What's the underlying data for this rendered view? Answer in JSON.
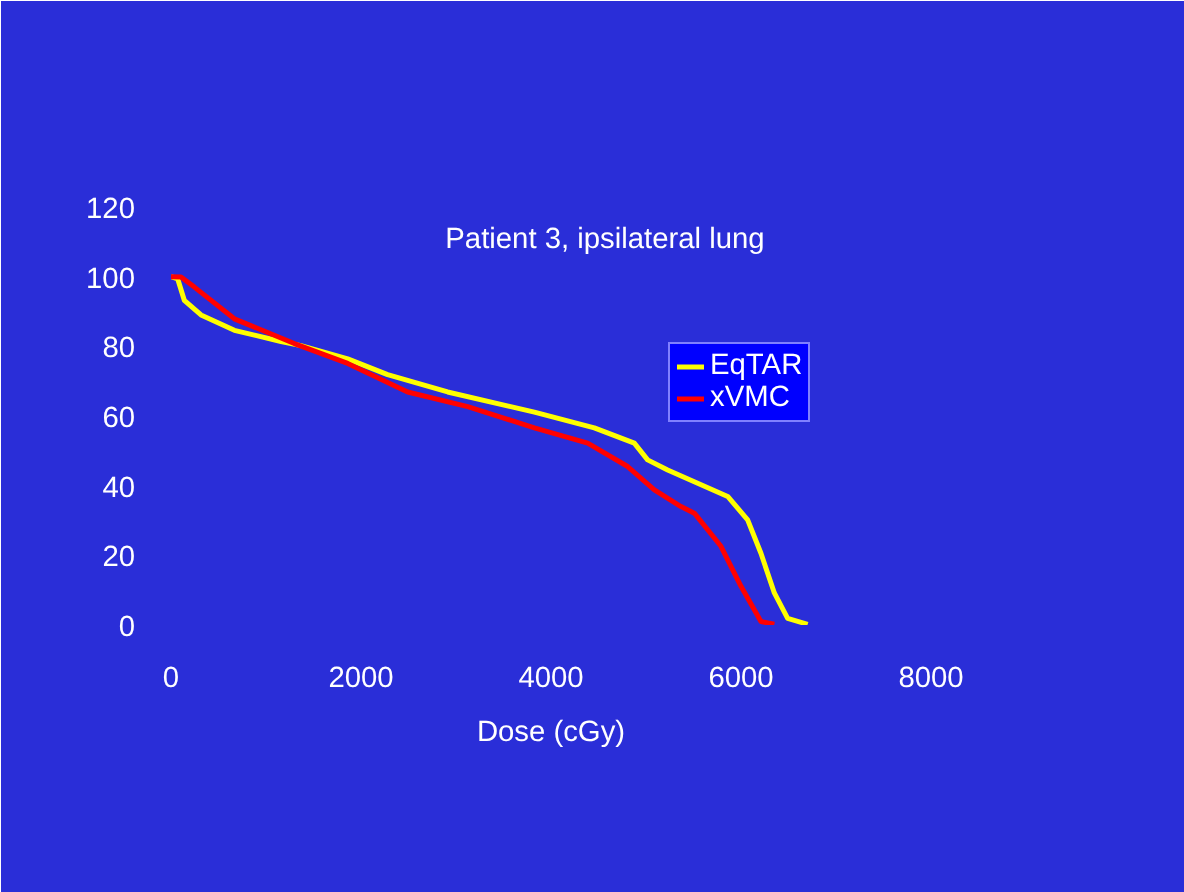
{
  "chart_data": {
    "type": "line",
    "title": "Patient 3, ipsilateral lung",
    "xlabel": "Dose (cGy)",
    "xlim": [
      0,
      8000
    ],
    "ylim": [
      0,
      120
    ],
    "xticks": [
      0,
      2000,
      4000,
      6000,
      8000
    ],
    "yticks": [
      0,
      20,
      40,
      60,
      80,
      100,
      120
    ],
    "grid": false,
    "legend": "right",
    "marker": "none",
    "line_style": "solid",
    "series": [
      {
        "name": "EqTAR",
        "color": "#ffff00",
        "x": [
          0,
          70,
          140,
          316,
          667,
          1158,
          1368,
          1860,
          2280,
          2912,
          3825,
          4456,
          4877,
          5017,
          5228,
          5860,
          6070,
          6210,
          6351,
          6491,
          6702
        ],
        "values": [
          100,
          99.4,
          93.2,
          89,
          84.6,
          81.4,
          80.2,
          76.4,
          71.9,
          66.9,
          61.1,
          56.6,
          52.2,
          47.4,
          44.5,
          36.9,
          30.2,
          20.6,
          9.2,
          1.9,
          0.2
        ]
      },
      {
        "name": "xVMC",
        "color": "#ff0000",
        "x": [
          0,
          105,
          246,
          667,
          1298,
          1860,
          2491,
          3123,
          3825,
          4386,
          4807,
          5088,
          5368,
          5509,
          5789,
          6000,
          6210,
          6351
        ],
        "values": [
          100,
          99.9,
          97,
          87.9,
          80.8,
          75.1,
          66.9,
          62.7,
          56.6,
          52.2,
          45.5,
          38.8,
          34,
          32.1,
          22.6,
          11.1,
          1,
          0.2
        ]
      }
    ]
  }
}
